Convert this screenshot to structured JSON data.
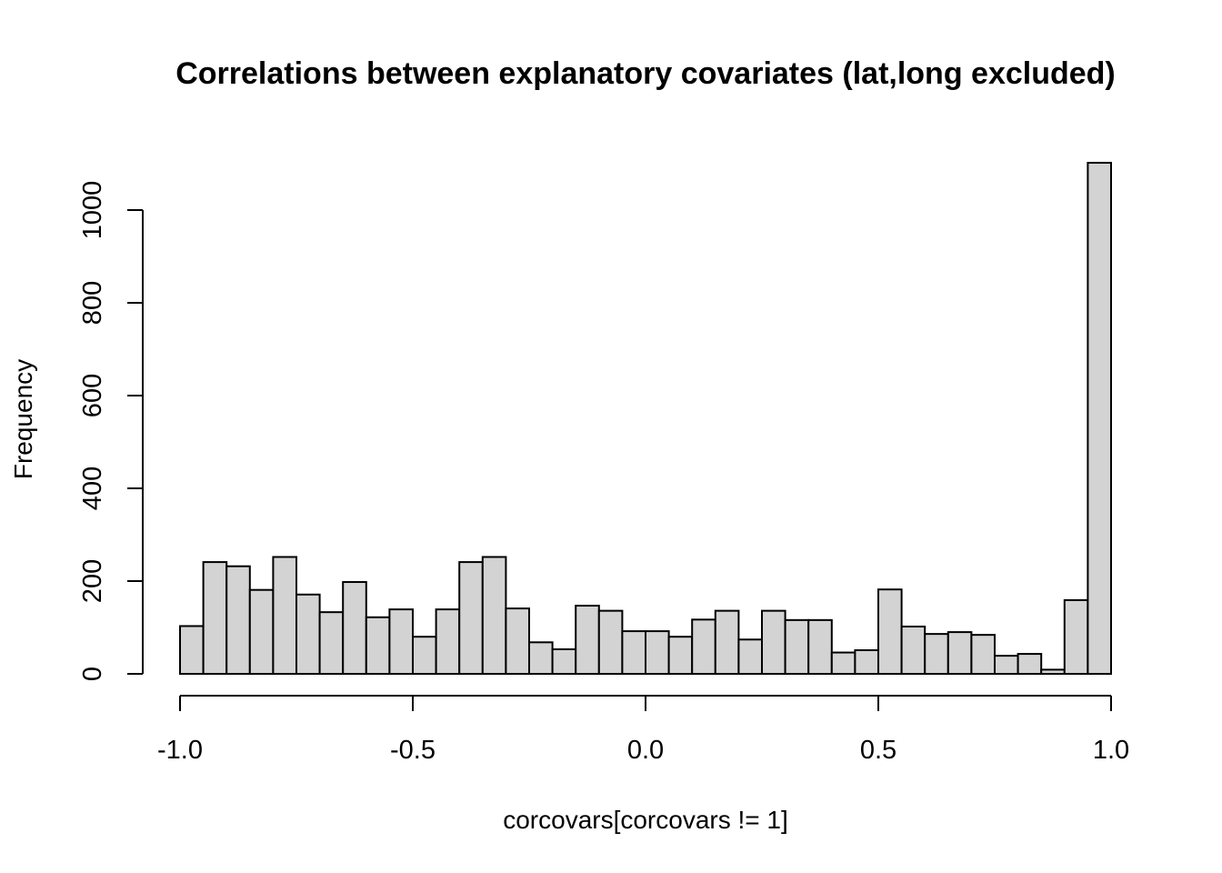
{
  "chart_data": {
    "type": "bar",
    "title": "Correlations between explanatory covariates (lat,long excluded)",
    "xlabel": "corcovars[corcovars != 1]",
    "ylabel": "Frequency",
    "xlim": [
      -1.0,
      1.0
    ],
    "ylim": [
      0,
      1100
    ],
    "x_ticks": [
      -1.0,
      -0.5,
      0.0,
      0.5,
      1.0
    ],
    "x_tick_labels": [
      "-1.0",
      "-0.5",
      "0.0",
      "0.5",
      "1.0"
    ],
    "y_ticks": [
      0,
      200,
      400,
      600,
      800,
      1000
    ],
    "y_tick_labels": [
      "0",
      "200",
      "400",
      "600",
      "800",
      "1000"
    ],
    "bin_width": 0.05,
    "bin_starts": [
      -1.0,
      -0.95,
      -0.9,
      -0.85,
      -0.8,
      -0.75,
      -0.7,
      -0.65,
      -0.6,
      -0.55,
      -0.5,
      -0.45,
      -0.4,
      -0.35,
      -0.3,
      -0.25,
      -0.2,
      -0.15,
      -0.1,
      -0.05,
      0.0,
      0.05,
      0.1,
      0.15,
      0.2,
      0.25,
      0.3,
      0.35,
      0.4,
      0.45,
      0.5,
      0.55,
      0.6,
      0.65,
      0.7,
      0.75,
      0.8,
      0.85,
      0.9,
      0.95
    ],
    "values": [
      103,
      241,
      232,
      181,
      252,
      171,
      133,
      198,
      122,
      139,
      80,
      139,
      241,
      252,
      141,
      68,
      53,
      147,
      136,
      92,
      92,
      80,
      117,
      136,
      74,
      136,
      116,
      116,
      46,
      51,
      182,
      102,
      86,
      90,
      84,
      39,
      43,
      9,
      159,
      1102
    ],
    "grid": false,
    "colors": {
      "bar_fill": "#d3d3d3",
      "bar_stroke": "#000000"
    }
  }
}
